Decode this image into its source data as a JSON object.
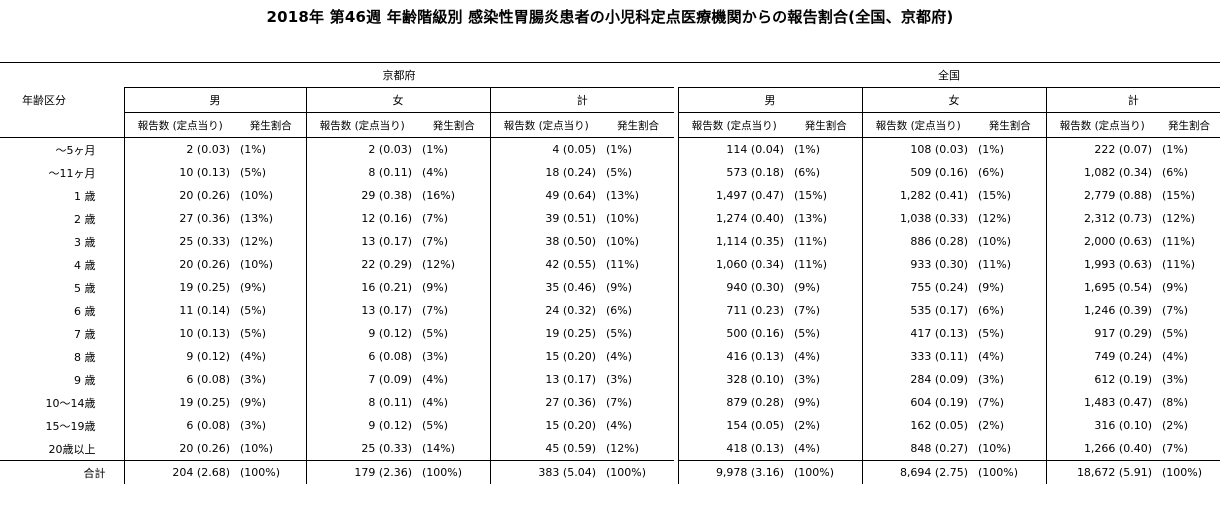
{
  "title": "2018年 第46週 年齢階級別 感染性胃腸炎患者の小児科定点医療機関からの報告割合(全国、京都府)",
  "header": {
    "age_label": "年齢区分",
    "regions": [
      "京都府",
      "全国"
    ],
    "sexes": [
      "男",
      "女",
      "計"
    ],
    "col_report": "報告数 (定点当り)",
    "col_ratio": "発生割合"
  },
  "rows": [
    {
      "label": "～5ヶ月",
      "kyoto": [
        [
          "2 (0.03)",
          "(1%)"
        ],
        [
          "2 (0.03)",
          "(1%)"
        ],
        [
          "4 (0.05)",
          "(1%)"
        ]
      ],
      "national": [
        [
          "114 (0.04)",
          "(1%)"
        ],
        [
          "108 (0.03)",
          "(1%)"
        ],
        [
          "222 (0.07)",
          "(1%)"
        ]
      ]
    },
    {
      "label": "～11ヶ月",
      "kyoto": [
        [
          "10 (0.13)",
          "(5%)"
        ],
        [
          "8 (0.11)",
          "(4%)"
        ],
        [
          "18 (0.24)",
          "(5%)"
        ]
      ],
      "national": [
        [
          "573 (0.18)",
          "(6%)"
        ],
        [
          "509 (0.16)",
          "(6%)"
        ],
        [
          "1,082 (0.34)",
          "(6%)"
        ]
      ]
    },
    {
      "label": "1 歳",
      "kyoto": [
        [
          "20 (0.26)",
          "(10%)"
        ],
        [
          "29 (0.38)",
          "(16%)"
        ],
        [
          "49 (0.64)",
          "(13%)"
        ]
      ],
      "national": [
        [
          "1,497 (0.47)",
          "(15%)"
        ],
        [
          "1,282 (0.41)",
          "(15%)"
        ],
        [
          "2,779 (0.88)",
          "(15%)"
        ]
      ]
    },
    {
      "label": "2 歳",
      "kyoto": [
        [
          "27 (0.36)",
          "(13%)"
        ],
        [
          "12 (0.16)",
          "(7%)"
        ],
        [
          "39 (0.51)",
          "(10%)"
        ]
      ],
      "national": [
        [
          "1,274 (0.40)",
          "(13%)"
        ],
        [
          "1,038 (0.33)",
          "(12%)"
        ],
        [
          "2,312 (0.73)",
          "(12%)"
        ]
      ]
    },
    {
      "label": "3 歳",
      "kyoto": [
        [
          "25 (0.33)",
          "(12%)"
        ],
        [
          "13 (0.17)",
          "(7%)"
        ],
        [
          "38 (0.50)",
          "(10%)"
        ]
      ],
      "national": [
        [
          "1,114 (0.35)",
          "(11%)"
        ],
        [
          "886 (0.28)",
          "(10%)"
        ],
        [
          "2,000 (0.63)",
          "(11%)"
        ]
      ]
    },
    {
      "label": "4 歳",
      "kyoto": [
        [
          "20 (0.26)",
          "(10%)"
        ],
        [
          "22 (0.29)",
          "(12%)"
        ],
        [
          "42 (0.55)",
          "(11%)"
        ]
      ],
      "national": [
        [
          "1,060 (0.34)",
          "(11%)"
        ],
        [
          "933 (0.30)",
          "(11%)"
        ],
        [
          "1,993 (0.63)",
          "(11%)"
        ]
      ]
    },
    {
      "label": "5 歳",
      "kyoto": [
        [
          "19 (0.25)",
          "(9%)"
        ],
        [
          "16 (0.21)",
          "(9%)"
        ],
        [
          "35 (0.46)",
          "(9%)"
        ]
      ],
      "national": [
        [
          "940 (0.30)",
          "(9%)"
        ],
        [
          "755 (0.24)",
          "(9%)"
        ],
        [
          "1,695 (0.54)",
          "(9%)"
        ]
      ]
    },
    {
      "label": "6 歳",
      "kyoto": [
        [
          "11 (0.14)",
          "(5%)"
        ],
        [
          "13 (0.17)",
          "(7%)"
        ],
        [
          "24 (0.32)",
          "(6%)"
        ]
      ],
      "national": [
        [
          "711 (0.23)",
          "(7%)"
        ],
        [
          "535 (0.17)",
          "(6%)"
        ],
        [
          "1,246 (0.39)",
          "(7%)"
        ]
      ]
    },
    {
      "label": "7 歳",
      "kyoto": [
        [
          "10 (0.13)",
          "(5%)"
        ],
        [
          "9 (0.12)",
          "(5%)"
        ],
        [
          "19 (0.25)",
          "(5%)"
        ]
      ],
      "national": [
        [
          "500 (0.16)",
          "(5%)"
        ],
        [
          "417 (0.13)",
          "(5%)"
        ],
        [
          "917 (0.29)",
          "(5%)"
        ]
      ]
    },
    {
      "label": "8 歳",
      "kyoto": [
        [
          "9 (0.12)",
          "(4%)"
        ],
        [
          "6 (0.08)",
          "(3%)"
        ],
        [
          "15 (0.20)",
          "(4%)"
        ]
      ],
      "national": [
        [
          "416 (0.13)",
          "(4%)"
        ],
        [
          "333 (0.11)",
          "(4%)"
        ],
        [
          "749 (0.24)",
          "(4%)"
        ]
      ]
    },
    {
      "label": "9 歳",
      "kyoto": [
        [
          "6 (0.08)",
          "(3%)"
        ],
        [
          "7 (0.09)",
          "(4%)"
        ],
        [
          "13 (0.17)",
          "(3%)"
        ]
      ],
      "national": [
        [
          "328 (0.10)",
          "(3%)"
        ],
        [
          "284 (0.09)",
          "(3%)"
        ],
        [
          "612 (0.19)",
          "(3%)"
        ]
      ]
    },
    {
      "label": "10～14歳",
      "kyoto": [
        [
          "19 (0.25)",
          "(9%)"
        ],
        [
          "8 (0.11)",
          "(4%)"
        ],
        [
          "27 (0.36)",
          "(7%)"
        ]
      ],
      "national": [
        [
          "879 (0.28)",
          "(9%)"
        ],
        [
          "604 (0.19)",
          "(7%)"
        ],
        [
          "1,483 (0.47)",
          "(8%)"
        ]
      ]
    },
    {
      "label": "15～19歳",
      "kyoto": [
        [
          "6 (0.08)",
          "(3%)"
        ],
        [
          "9 (0.12)",
          "(5%)"
        ],
        [
          "15 (0.20)",
          "(4%)"
        ]
      ],
      "national": [
        [
          "154 (0.05)",
          "(2%)"
        ],
        [
          "162 (0.05)",
          "(2%)"
        ],
        [
          "316 (0.10)",
          "(2%)"
        ]
      ]
    },
    {
      "label": "20歳以上",
      "kyoto": [
        [
          "20 (0.26)",
          "(10%)"
        ],
        [
          "25 (0.33)",
          "(14%)"
        ],
        [
          "45 (0.59)",
          "(12%)"
        ]
      ],
      "national": [
        [
          "418 (0.13)",
          "(4%)"
        ],
        [
          "848 (0.27)",
          "(10%)"
        ],
        [
          "1,266 (0.40)",
          "(7%)"
        ]
      ]
    }
  ],
  "total": {
    "label": "合計",
    "kyoto": [
      [
        "204 (2.68)",
        "(100%)"
      ],
      [
        "179 (2.36)",
        "(100%)"
      ],
      [
        "383 (5.04)",
        "(100%)"
      ]
    ],
    "national": [
      [
        "9,978 (3.16)",
        "(100%)"
      ],
      [
        "8,694 (2.75)",
        "(100%)"
      ],
      [
        "18,672 (5.91)",
        "(100%)"
      ]
    ]
  }
}
